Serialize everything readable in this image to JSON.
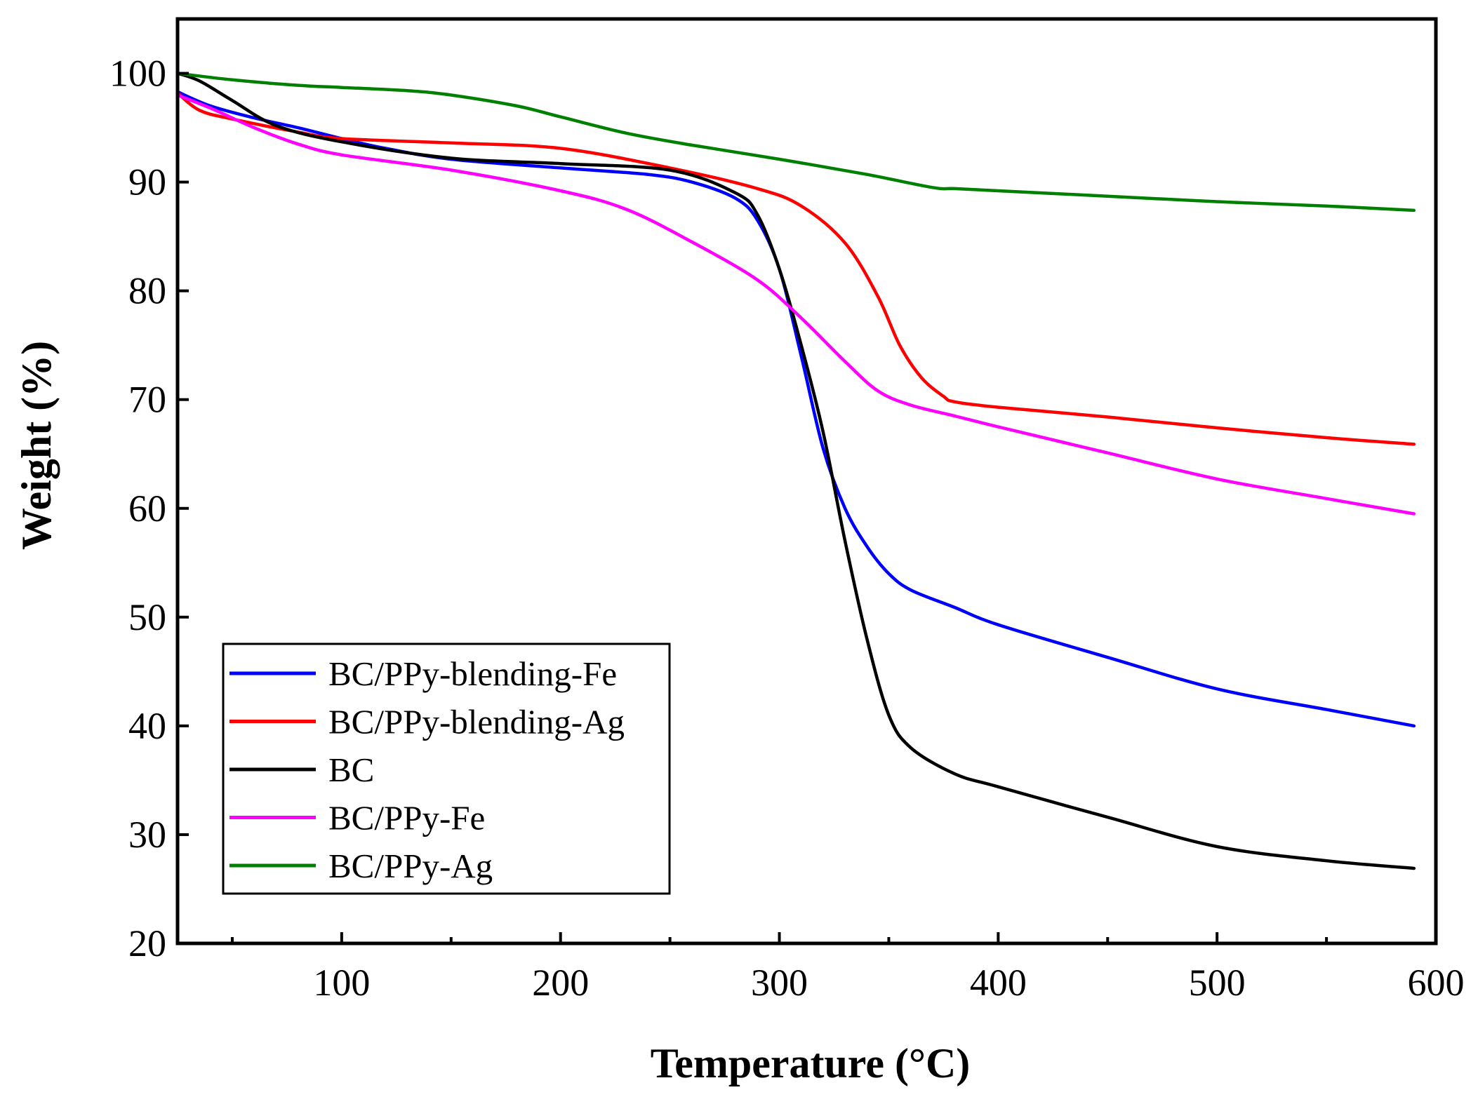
{
  "chart_data": {
    "type": "line",
    "title": "",
    "xlabel": "Temperature (°C)",
    "ylabel": "Weight (%)",
    "xlim": [
      25,
      600
    ],
    "ylim": [
      20,
      105
    ],
    "x_ticks": [
      100,
      200,
      300,
      400,
      500,
      600
    ],
    "x_tick_labels": [
      "100",
      "200",
      "300",
      "400",
      "500",
      "600"
    ],
    "x_minor_ticks": [
      50,
      150,
      250,
      350,
      450,
      550
    ],
    "y_ticks": [
      20,
      30,
      40,
      50,
      60,
      70,
      80,
      90,
      100
    ],
    "y_tick_labels": [
      "20",
      "30",
      "40",
      "50",
      "60",
      "70",
      "80",
      "90",
      "100"
    ],
    "grid": false,
    "legend_position": "bottom-left",
    "series": [
      {
        "name": "BC/PPy-blending-Fe",
        "color": "#0000ff",
        "x": [
          25,
          40,
          60,
          80,
          100,
          120,
          150,
          200,
          240,
          260,
          280,
          290,
          300,
          310,
          320,
          330,
          340,
          350,
          360,
          380,
          400,
          450,
          500,
          550,
          590
        ],
        "y": [
          98.3,
          97.0,
          95.9,
          95.0,
          94.0,
          93.1,
          92.1,
          91.3,
          90.7,
          90.0,
          88.5,
          86.5,
          82.0,
          74.0,
          65.5,
          60.0,
          56.5,
          54.0,
          52.5,
          50.9,
          49.3,
          46.3,
          43.4,
          41.5,
          40.0
        ]
      },
      {
        "name": "BC/PPy-blending-Ag",
        "color": "#ff0000",
        "x": [
          25,
          35,
          50,
          80,
          100,
          150,
          200,
          250,
          290,
          310,
          330,
          345,
          355,
          365,
          375,
          380,
          400,
          450,
          500,
          550,
          590
        ],
        "y": [
          98.2,
          96.6,
          95.8,
          94.6,
          94.0,
          93.6,
          93.1,
          91.3,
          89.4,
          87.8,
          84.4,
          79.5,
          75.0,
          72.0,
          70.3,
          69.8,
          69.3,
          68.4,
          67.4,
          66.5,
          65.9
        ]
      },
      {
        "name": "BC",
        "color": "#000000",
        "x": [
          25,
          35,
          50,
          70,
          100,
          150,
          200,
          250,
          280,
          290,
          300,
          310,
          320,
          330,
          340,
          350,
          360,
          380,
          400,
          450,
          500,
          550,
          590
        ],
        "y": [
          100.0,
          99.3,
          97.5,
          95.2,
          93.7,
          92.2,
          91.7,
          91.1,
          89.0,
          87.0,
          82.0,
          75.0,
          67.0,
          57.0,
          48.0,
          41.0,
          38.0,
          35.6,
          34.4,
          31.6,
          28.9,
          27.6,
          26.9
        ]
      },
      {
        "name": "BC/PPy-Fe",
        "color": "#ff00ff",
        "x": [
          25,
          40,
          60,
          80,
          100,
          150,
          200,
          230,
          260,
          290,
          310,
          330,
          345,
          360,
          380,
          400,
          450,
          500,
          550,
          590
        ],
        "y": [
          98.0,
          96.8,
          95.0,
          93.5,
          92.5,
          91.1,
          89.2,
          87.5,
          84.5,
          81.0,
          77.5,
          73.5,
          70.8,
          69.5,
          68.5,
          67.5,
          65.1,
          62.7,
          60.9,
          59.5
        ]
      },
      {
        "name": "BC/PPy-Ag",
        "color": "#008000",
        "x": [
          25,
          50,
          80,
          100,
          130,
          150,
          180,
          200,
          230,
          260,
          300,
          340,
          370,
          380,
          400,
          450,
          500,
          550,
          590
        ],
        "y": [
          100.0,
          99.4,
          98.9,
          98.7,
          98.4,
          98.0,
          97.0,
          96.0,
          94.5,
          93.4,
          92.1,
          90.7,
          89.5,
          89.4,
          89.2,
          88.7,
          88.2,
          87.8,
          87.4
        ]
      }
    ]
  }
}
